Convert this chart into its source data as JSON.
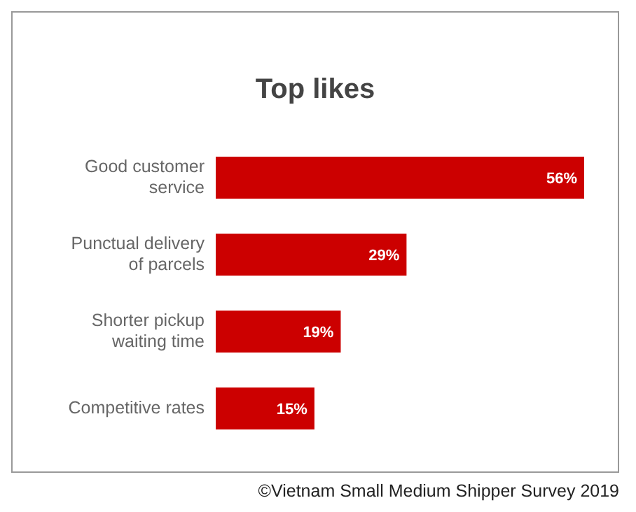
{
  "chart_data": {
    "type": "bar",
    "orientation": "horizontal",
    "title": "Top likes",
    "categories": [
      "Good customer service",
      "Punctual delivery of parcels",
      "Shorter pickup waiting time",
      "Competitive rates"
    ],
    "values": [
      56,
      29,
      19,
      15
    ],
    "value_labels": [
      "56%",
      "29%",
      "19%",
      "15%"
    ],
    "color": "#cc0000",
    "grid": false,
    "annotations": [
      "©Vietnam Small Medium Shipper Survey 2019"
    ]
  }
}
